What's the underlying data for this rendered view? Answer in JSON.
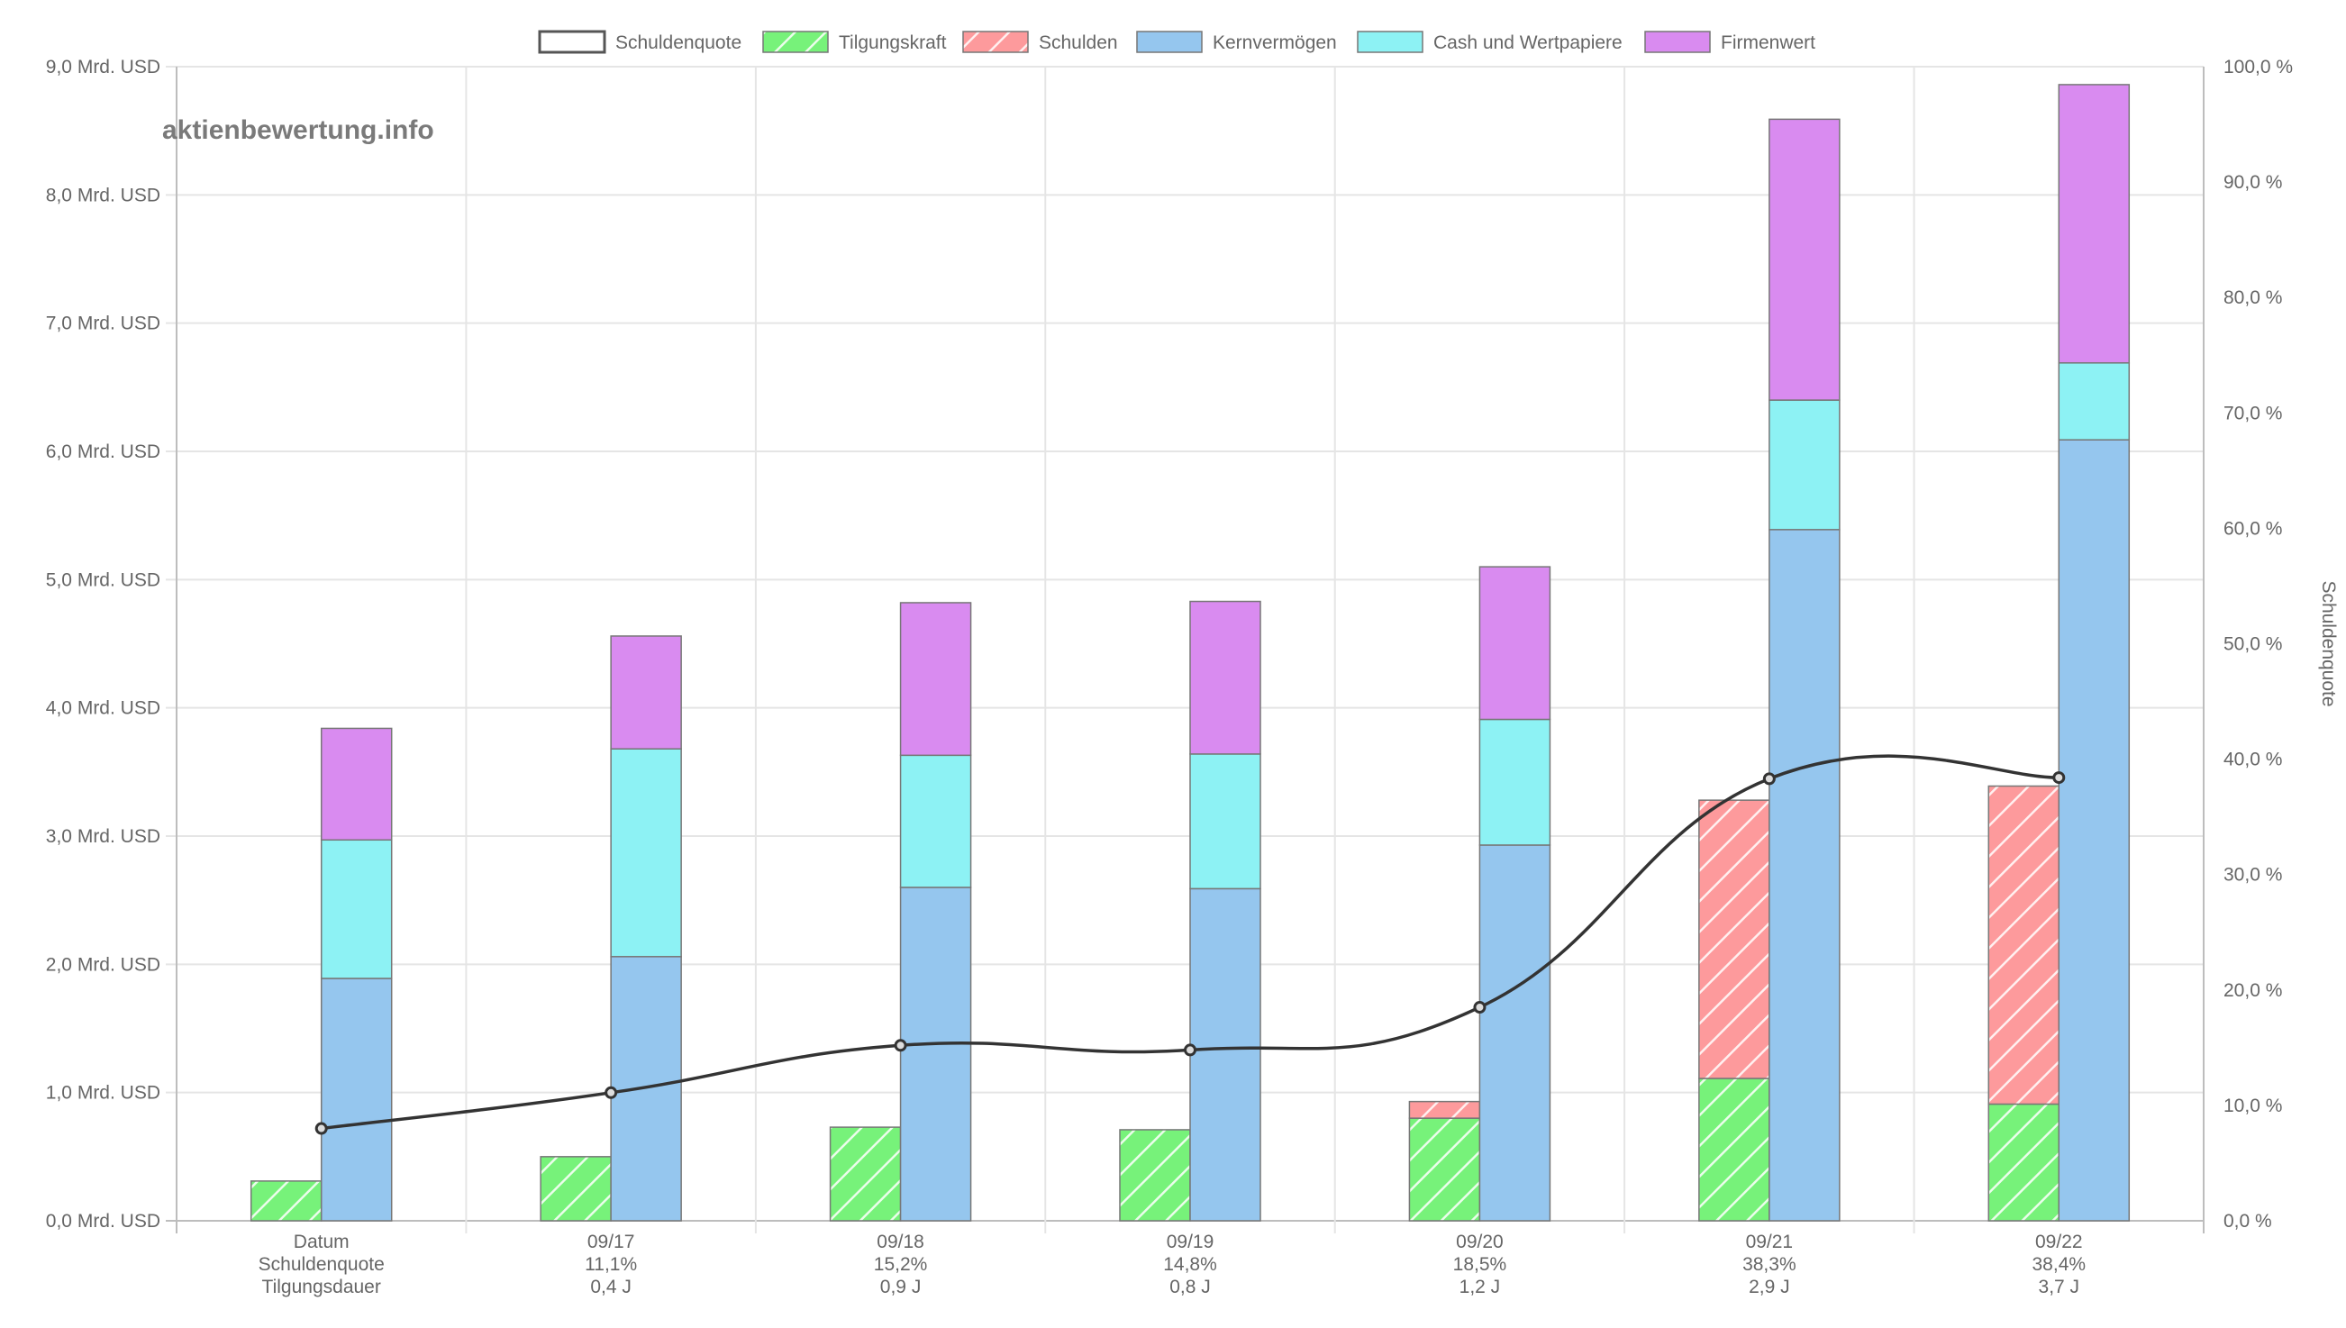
{
  "watermark": "aktienbewertung.info",
  "colors": {
    "tilgungskraft": "#77f27a",
    "schulden": "#fd9a9c",
    "kernvermoegen": "#95c6ee",
    "cash": "#8df2f4",
    "firmenwert": "#d98bf0",
    "line": "#333333",
    "grid": "#e5e5e5",
    "axis": "#bdbdbd"
  },
  "chart_data": {
    "type": "bar",
    "categories": [
      "Datum",
      "09/17",
      "09/18",
      "09/19",
      "09/20",
      "09/21",
      "09/22"
    ],
    "category_lines": [
      [
        "Datum",
        "Schuldenquote",
        "Tilgungsdauer"
      ],
      [
        "09/17",
        "11,1%",
        "0,4 J"
      ],
      [
        "09/18",
        "15,2%",
        "0,9 J"
      ],
      [
        "09/19",
        "14,8%",
        "0,8 J"
      ],
      [
        "09/20",
        "18,5%",
        "1,2 J"
      ],
      [
        "09/21",
        "38,3%",
        "2,9 J"
      ],
      [
        "09/22",
        "38,4%",
        "3,7 J"
      ]
    ],
    "legend": [
      "Schuldenquote",
      "Tilgungskraft",
      "Schulden",
      "Kernvermögen",
      "Cash und Wertpapiere",
      "Firmenwert"
    ],
    "legend_position": "top",
    "y_left": {
      "min": 0,
      "max": 9,
      "step": 1,
      "tick_labels": [
        "0,0 Mrd. USD",
        "1,0 Mrd. USD",
        "2,0 Mrd. USD",
        "3,0 Mrd. USD",
        "4,0 Mrd. USD",
        "5,0 Mrd. USD",
        "6,0 Mrd. USD",
        "7,0 Mrd. USD",
        "8,0 Mrd. USD",
        "9,0 Mrd. USD"
      ]
    },
    "y_right": {
      "min": 0,
      "max": 100,
      "step": 10,
      "title": "Schuldenquote",
      "tick_labels": [
        "0,0 %",
        "10,0 %",
        "20,0 %",
        "30,0 %",
        "40,0 %",
        "50,0 %",
        "60,0 %",
        "70,0 %",
        "80,0 %",
        "90,0 %",
        "100,0 %"
      ]
    },
    "grid": true,
    "series": [
      {
        "name": "Tilgungskraft",
        "stack": "left",
        "values": [
          0.31,
          0.5,
          0.73,
          0.71,
          0.8,
          1.11,
          0.91
        ]
      },
      {
        "name": "Schulden",
        "stack": "left",
        "values": [
          0,
          0,
          0,
          0,
          0.13,
          2.17,
          2.48
        ]
      },
      {
        "name": "Kernvermögen",
        "stack": "right",
        "values": [
          1.89,
          2.06,
          2.6,
          2.59,
          2.93,
          5.39,
          6.09
        ]
      },
      {
        "name": "Cash und Wertpapiere",
        "stack": "right",
        "values": [
          1.08,
          1.62,
          1.03,
          1.05,
          0.98,
          1.01,
          0.6
        ]
      },
      {
        "name": "Firmenwert",
        "stack": "right",
        "values": [
          0.87,
          0.88,
          1.19,
          1.19,
          1.19,
          2.19,
          2.17
        ]
      },
      {
        "name": "Schuldenquote",
        "type": "line",
        "axis": "right",
        "values": [
          8.0,
          11.1,
          15.2,
          14.8,
          18.5,
          38.3,
          38.4
        ]
      }
    ]
  }
}
